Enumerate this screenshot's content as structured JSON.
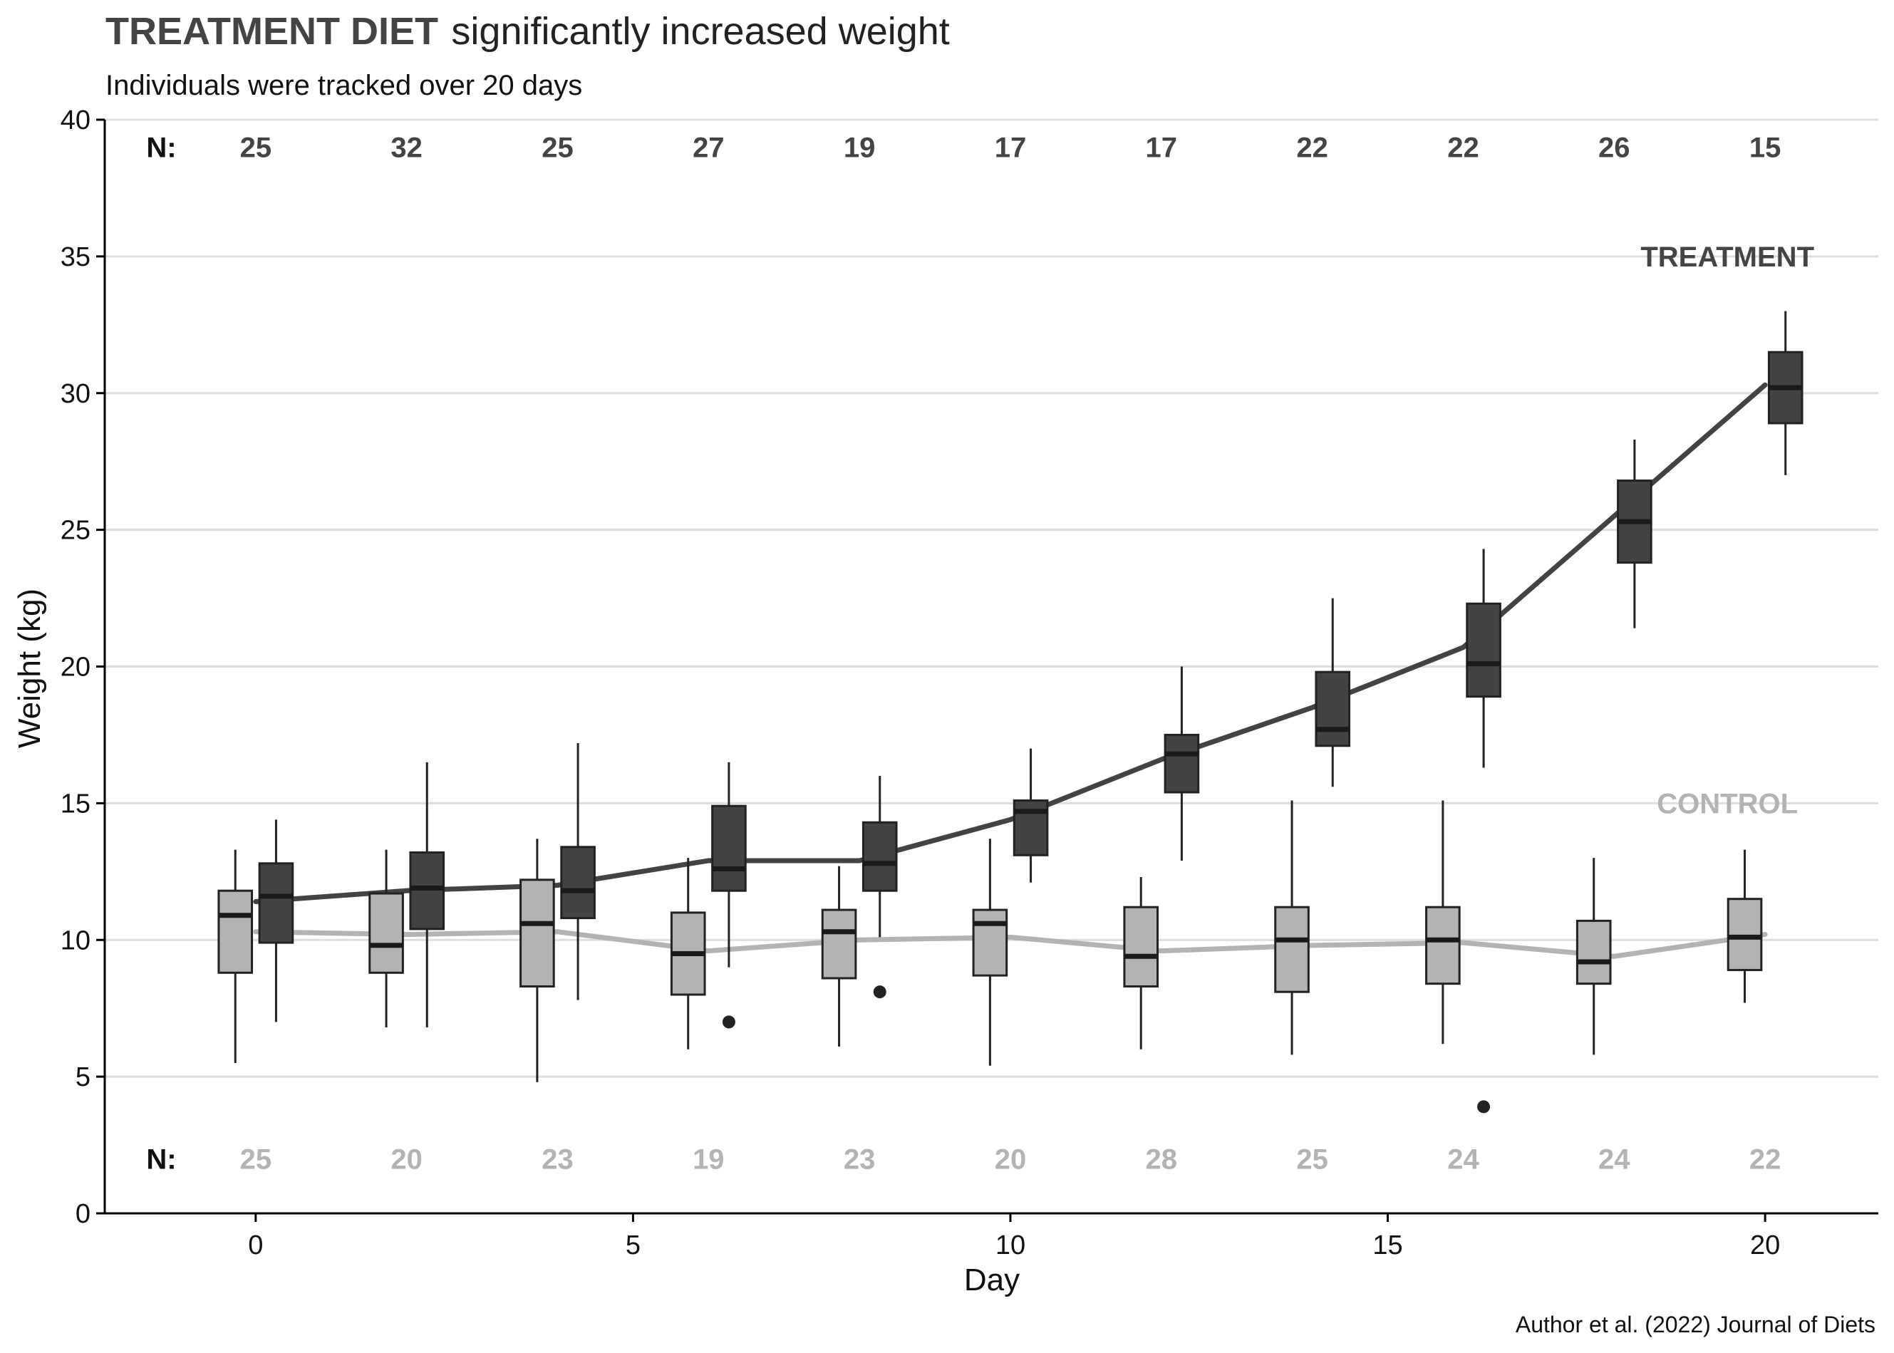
{
  "chart_data": {
    "type": "box",
    "title": "TREATMENT DIET significantly increased weight",
    "title_bold_part": "TREATMENT DIET",
    "title_rest": "significantly increased weight",
    "subtitle": "Individuals were tracked over 20 days",
    "xlabel": "Day",
    "ylabel": "Weight (kg)",
    "caption": "Author et al. (2022) Journal of Diets",
    "xlim": [
      -2,
      21.5
    ],
    "ylim": [
      0,
      40
    ],
    "xticks": [
      0,
      5,
      10,
      15,
      20
    ],
    "yticks": [
      0,
      5,
      10,
      15,
      20,
      25,
      30,
      35,
      40
    ],
    "grid": "horizontal major",
    "legend": "direct labels on right",
    "n_label": "N:",
    "colors": {
      "treatment_fill": "#434343",
      "treatment_line": "#434343",
      "control_fill": "#b3b3b3",
      "control_line": "#b3b3b3",
      "box_stroke": "#222222",
      "grid": "#dedede",
      "treatment_n_text": "#444444",
      "control_n_text": "#b3b3b3"
    },
    "days": [
      0,
      2,
      4,
      6,
      8,
      10,
      12,
      14,
      16,
      18,
      20
    ],
    "series": [
      {
        "name": "TREATMENT",
        "n": [
          25,
          32,
          25,
          27,
          19,
          17,
          17,
          22,
          22,
          26,
          15
        ],
        "mean_line": [
          11.4,
          11.8,
          12.0,
          12.9,
          12.9,
          14.4,
          16.6,
          18.5,
          20.7,
          25.5,
          30.3
        ],
        "boxes": [
          {
            "day": 0,
            "whisker_low": 7.0,
            "q1": 9.9,
            "median": 11.6,
            "q3": 12.8,
            "whisker_high": 14.4,
            "outliers": []
          },
          {
            "day": 2,
            "whisker_low": 6.8,
            "q1": 10.4,
            "median": 11.9,
            "q3": 13.2,
            "whisker_high": 16.5,
            "outliers": []
          },
          {
            "day": 4,
            "whisker_low": 7.8,
            "q1": 10.8,
            "median": 11.8,
            "q3": 13.4,
            "whisker_high": 17.2,
            "outliers": []
          },
          {
            "day": 6,
            "whisker_low": 9.0,
            "q1": 11.8,
            "median": 12.6,
            "q3": 14.9,
            "whisker_high": 16.5,
            "outliers": [
              7.0
            ]
          },
          {
            "day": 8,
            "whisker_low": 10.1,
            "q1": 11.8,
            "median": 12.8,
            "q3": 14.3,
            "whisker_high": 16.0,
            "outliers": [
              8.1
            ]
          },
          {
            "day": 10,
            "whisker_low": 12.1,
            "q1": 13.1,
            "median": 14.7,
            "q3": 15.1,
            "whisker_high": 17.0,
            "outliers": []
          },
          {
            "day": 12,
            "whisker_low": 12.9,
            "q1": 15.4,
            "median": 16.8,
            "q3": 17.5,
            "whisker_high": 20.0,
            "outliers": []
          },
          {
            "day": 14,
            "whisker_low": 15.6,
            "q1": 17.1,
            "median": 17.7,
            "q3": 19.8,
            "whisker_high": 22.5,
            "outliers": []
          },
          {
            "day": 16,
            "whisker_low": 16.3,
            "q1": 18.9,
            "median": 20.1,
            "q3": 22.3,
            "whisker_high": 24.3,
            "outliers": [
              3.9
            ]
          },
          {
            "day": 18,
            "whisker_low": 21.4,
            "q1": 23.8,
            "median": 25.3,
            "q3": 26.8,
            "whisker_high": 28.3,
            "outliers": []
          },
          {
            "day": 20,
            "whisker_low": 27.0,
            "q1": 28.9,
            "median": 30.2,
            "q3": 31.5,
            "whisker_high": 33.0,
            "outliers": []
          }
        ]
      },
      {
        "name": "CONTROL",
        "n": [
          25,
          20,
          23,
          19,
          23,
          20,
          28,
          25,
          24,
          24,
          22
        ],
        "mean_line": [
          10.3,
          10.2,
          10.3,
          9.6,
          10.0,
          10.1,
          9.6,
          9.8,
          9.9,
          9.4,
          10.2
        ],
        "boxes": [
          {
            "day": 0,
            "whisker_low": 5.5,
            "q1": 8.8,
            "median": 10.9,
            "q3": 11.8,
            "whisker_high": 13.3,
            "outliers": []
          },
          {
            "day": 2,
            "whisker_low": 6.8,
            "q1": 8.8,
            "median": 9.8,
            "q3": 11.7,
            "whisker_high": 13.3,
            "outliers": []
          },
          {
            "day": 4,
            "whisker_low": 4.8,
            "q1": 8.3,
            "median": 10.6,
            "q3": 12.2,
            "whisker_high": 13.7,
            "outliers": []
          },
          {
            "day": 6,
            "whisker_low": 6.0,
            "q1": 8.0,
            "median": 9.5,
            "q3": 11.0,
            "whisker_high": 13.0,
            "outliers": []
          },
          {
            "day": 8,
            "whisker_low": 6.1,
            "q1": 8.6,
            "median": 10.3,
            "q3": 11.1,
            "whisker_high": 12.7,
            "outliers": []
          },
          {
            "day": 10,
            "whisker_low": 5.4,
            "q1": 8.7,
            "median": 10.6,
            "q3": 11.1,
            "whisker_high": 13.7,
            "outliers": []
          },
          {
            "day": 12,
            "whisker_low": 6.0,
            "q1": 8.3,
            "median": 9.4,
            "q3": 11.2,
            "whisker_high": 12.3,
            "outliers": []
          },
          {
            "day": 14,
            "whisker_low": 5.8,
            "q1": 8.1,
            "median": 10.0,
            "q3": 11.2,
            "whisker_high": 15.1,
            "outliers": []
          },
          {
            "day": 16,
            "whisker_low": 6.2,
            "q1": 8.4,
            "median": 10.0,
            "q3": 11.2,
            "whisker_high": 15.1,
            "outliers": []
          },
          {
            "day": 18,
            "whisker_low": 5.8,
            "q1": 8.4,
            "median": 9.2,
            "q3": 10.7,
            "whisker_high": 13.0,
            "outliers": []
          },
          {
            "day": 20,
            "whisker_low": 7.7,
            "q1": 8.9,
            "median": 10.1,
            "q3": 11.5,
            "whisker_high": 13.3,
            "outliers": []
          }
        ]
      }
    ],
    "series_label_positions": {
      "TREATMENT": {
        "x": 19.5,
        "y": 35
      },
      "CONTROL": {
        "x": 19.5,
        "y": 15
      }
    },
    "n_rows_y": {
      "treatment": 39,
      "control": 2
    }
  }
}
